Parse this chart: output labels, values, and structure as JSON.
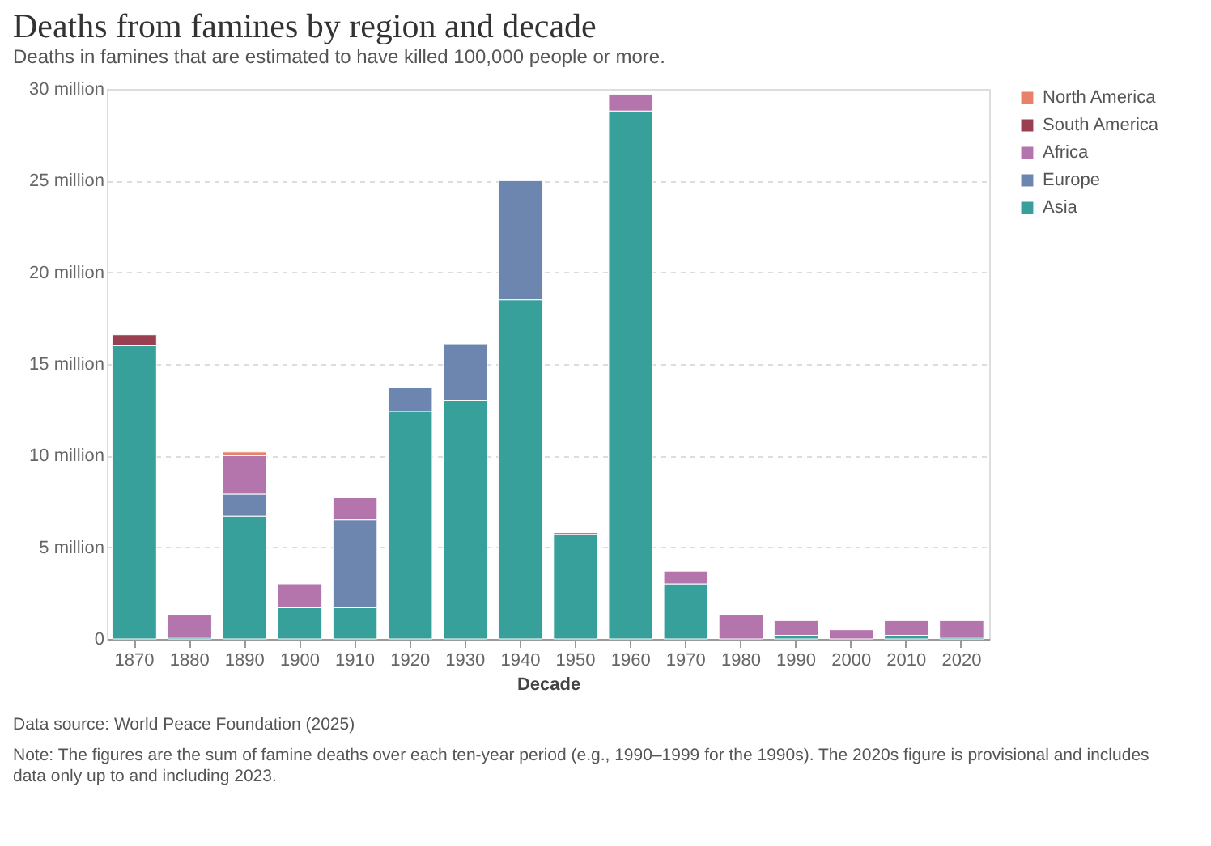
{
  "chart_data": {
    "type": "bar",
    "title": "Deaths from famines by region and decade",
    "subtitle": "Deaths in famines that are estimated to have killed 100,000 people or more.",
    "xlabel": "Decade",
    "categories": [
      "1870",
      "1880",
      "1890",
      "1900",
      "1910",
      "1920",
      "1930",
      "1940",
      "1950",
      "1960",
      "1970",
      "1980",
      "1990",
      "2000",
      "2010",
      "2020"
    ],
    "stacked": true,
    "series": [
      {
        "name": "Asia",
        "color": "#38a09a",
        "values": [
          16.0,
          0.1,
          6.7,
          1.7,
          1.7,
          12.4,
          13.0,
          18.5,
          5.7,
          28.8,
          3.0,
          null,
          0.2,
          null,
          0.2,
          0.1
        ]
      },
      {
        "name": "Europe",
        "color": "#6d86b0",
        "values": [
          null,
          null,
          1.2,
          null,
          4.8,
          1.3,
          3.1,
          6.5,
          null,
          null,
          null,
          null,
          null,
          null,
          null,
          null
        ]
      },
      {
        "name": "Africa",
        "color": "#b474ac",
        "values": [
          null,
          1.2,
          2.1,
          1.3,
          1.2,
          null,
          null,
          null,
          0.1,
          0.9,
          0.7,
          1.3,
          0.8,
          0.5,
          0.8,
          0.9
        ]
      },
      {
        "name": "South America",
        "color": "#9a3e51",
        "values": [
          0.6,
          null,
          null,
          null,
          null,
          null,
          null,
          null,
          null,
          null,
          null,
          null,
          null,
          null,
          null,
          null
        ]
      },
      {
        "name": "North America",
        "color": "#e8806a",
        "values": [
          null,
          null,
          0.2,
          null,
          null,
          null,
          null,
          null,
          null,
          null,
          null,
          null,
          null,
          null,
          null,
          null
        ]
      }
    ],
    "ylim": [
      0,
      30
    ],
    "yticks": [
      0,
      {
        "value": 5,
        "label": "5 million"
      },
      {
        "value": 10,
        "label": "10 million"
      },
      {
        "value": 15,
        "label": "15 million"
      },
      {
        "value": 20,
        "label": "20 million"
      },
      {
        "value": 25,
        "label": "25 million"
      },
      {
        "value": 30,
        "label": "30 million"
      }
    ],
    "grid": "y",
    "legend": "top right",
    "annotations": [
      "Data source: World Peace Foundation (2025)",
      "Note: The figures are the sum of famine deaths over each ten-year period (e.g., 1990–1999 for the 1990s). The 2020s figure is provisional and includes data only up to and including 2023."
    ]
  }
}
